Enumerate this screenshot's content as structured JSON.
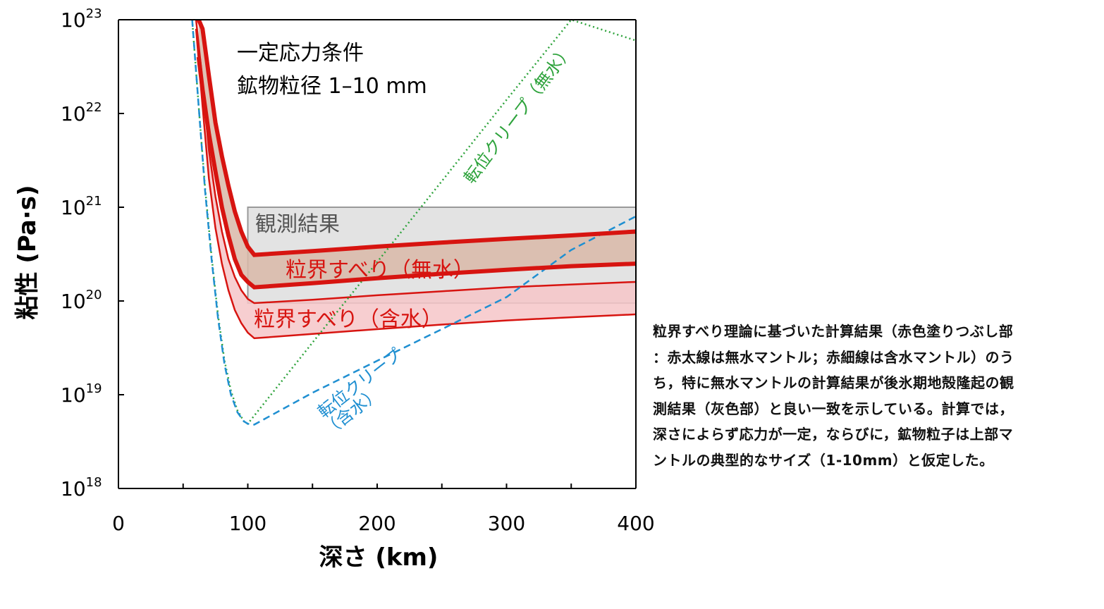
{
  "chart_data": {
    "type": "line",
    "xlabel": "深さ (km)",
    "ylabel": "粘性 (Pa·s)",
    "xlim": [
      0,
      400
    ],
    "ylim": [
      1e+18,
      1e+23
    ],
    "yscale": "log",
    "x_ticks": [
      "0",
      "100",
      "200",
      "300",
      "400"
    ],
    "y_ticks": [
      {
        "base": "10",
        "exp": "18"
      },
      {
        "base": "10",
        "exp": "19"
      },
      {
        "base": "10",
        "exp": "20"
      },
      {
        "base": "10",
        "exp": "21"
      },
      {
        "base": "10",
        "exp": "22"
      },
      {
        "base": "10",
        "exp": "23"
      }
    ],
    "conditions": [
      "一定応力条件",
      "鉱物粒径 1–10 mm"
    ],
    "observation_band": {
      "label": "観測結果",
      "x_start": 100,
      "x_end": 400,
      "y_low": 9.5e+19,
      "y_high": 1e+21,
      "color": "#e3e3e3",
      "border": "#999999"
    },
    "series": [
      {
        "name": "粒界すべり（無水）",
        "kind": "band",
        "color": "#d71410",
        "fill": "#d9b8a8",
        "x": [
          62,
          65,
          70,
          75,
          80,
          85,
          90,
          95,
          100,
          105,
          150,
          200,
          250,
          300,
          350,
          400
        ],
        "upper": [
          1e+23,
          8e+22,
          2.5e+22,
          8e+21,
          3.5e+21,
          1.7e+21,
          9e+20,
          5.5e+20,
          3.8e+20,
          3.1e+20,
          3.4e+20,
          3.8e+20,
          4.2e+20,
          4.6e+20,
          5e+20,
          5.5e+20
        ],
        "lower": [
          4e+22,
          1.8e+22,
          6e+21,
          2.4e+21,
          1e+21,
          5e+20,
          2.8e+20,
          1.9e+20,
          1.6e+20,
          1.4e+20,
          1.55e+20,
          1.75e+20,
          1.95e+20,
          2.15e+20,
          2.35e+20,
          2.5e+20
        ]
      },
      {
        "name": "粒界すべり（含水）",
        "kind": "band",
        "color": "#d71410",
        "fill": "#f6c6c8",
        "x": [
          60,
          65,
          70,
          75,
          80,
          85,
          90,
          95,
          100,
          105,
          150,
          200,
          250,
          300,
          350,
          400
        ],
        "upper": [
          1e+23,
          2.2e+22,
          4e+21,
          1.3e+21,
          5.5e+20,
          2.8e+20,
          1.8e+20,
          1.3e+20,
          1.05e+20,
          9.5e+19,
          1.03e+20,
          1.15e+20,
          1.27e+20,
          1.4e+20,
          1.5e+20,
          1.6e+20
        ],
        "lower": [
          8e+22,
          1.2e+22,
          2e+21,
          6e+20,
          2.5e+20,
          1.3e+20,
          8e+19,
          5.8e+19,
          4.6e+19,
          4e+19,
          4.45e+19,
          5e+19,
          5.6e+19,
          6.2e+19,
          6.7e+19,
          7.2e+19
        ]
      },
      {
        "name": "転位クリープ（無水）",
        "kind": "line",
        "color": "#2ea33c",
        "dash": "2,4",
        "x": [
          57,
          62,
          67,
          72,
          77,
          82,
          87,
          92,
          97,
          100,
          150,
          200,
          250,
          300,
          350,
          400
        ],
        "y": [
          1e+23,
          1.2e+22,
          1.6e+21,
          3e+20,
          7e+19,
          2.3e+19,
          1.1e+19,
          6.8e+18,
          5.2e+18,
          4.9e+18,
          3.6e+19,
          2.6e+20,
          1.9e+21,
          1.4e+22,
          1e+23,
          6e+22
        ]
      },
      {
        "name": "転位クリープ（含水）",
        "kind": "line",
        "color": "#1f8fd1",
        "dash": "10,6",
        "x": [
          57,
          62,
          67,
          72,
          77,
          82,
          87,
          92,
          97,
          100,
          105,
          150,
          200,
          250,
          300,
          350,
          400
        ],
        "y": [
          1e+23,
          1.2e+22,
          1.5e+21,
          2.8e+20,
          6.5e+19,
          2.1e+19,
          1e+19,
          6.5e+18,
          5.2e+18,
          4.9e+18,
          4.8e+18,
          1.05e+19,
          2.3e+19,
          5e+19,
          1.1e+20,
          3.5e+20,
          8e+20
        ]
      }
    ],
    "annotations": {
      "dry_gbs": "粒界すべり（無水）",
      "wet_gbs": "粒界すべり（含水）",
      "dry_disl": "転位クリープ（無水）",
      "wet_disl_1": "転位クリープ",
      "wet_disl_2": "（含水）"
    }
  },
  "caption": {
    "lines": [
      "粒界すべり理論に基づいた計算結果（赤色塗りつぶし部",
      "：赤太線は無水マントル；赤細線は含水マントル）のう",
      "ち，特に無水マントルの計算結果が後氷期地殻隆起の観",
      "測結果（灰色部）と良い一致を示している。計算では，",
      "深さによらず応力が一定，ならびに，鉱物粒子は上部マ",
      "ントルの典型的なサイズ（1-10mm）と仮定した。"
    ]
  }
}
